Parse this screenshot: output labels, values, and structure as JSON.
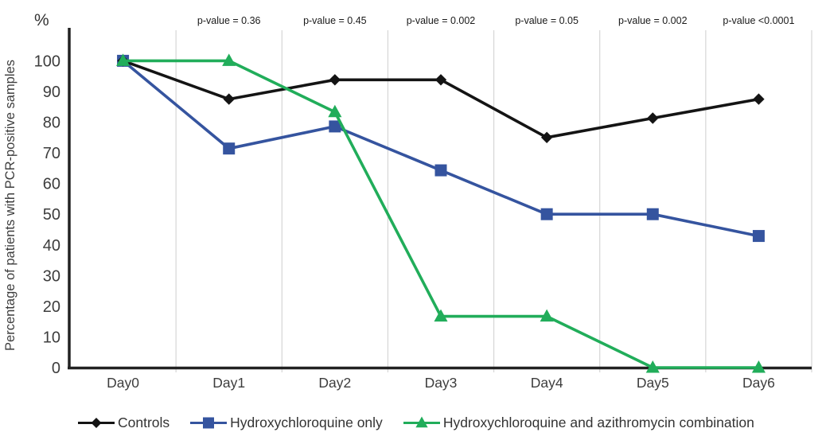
{
  "chart_data": {
    "type": "line",
    "title": "",
    "xlabel": "",
    "ylabel": "Percentage of patients with PCR-positive samples",
    "y_unit": "%",
    "categories": [
      "Day0",
      "Day1",
      "Day2",
      "Day3",
      "Day4",
      "Day5",
      "Day6"
    ],
    "y_ticks": [
      0,
      10,
      20,
      30,
      40,
      50,
      60,
      70,
      80,
      90,
      100
    ],
    "ylim": [
      0,
      100
    ],
    "grid": "vertical gridlines at category boundaries",
    "legend_position": "bottom",
    "p_value_annotations": [
      {
        "category": "Day1",
        "label": "p-value = 0.36"
      },
      {
        "category": "Day2",
        "label": "p-value = 0.45"
      },
      {
        "category": "Day3",
        "label": "p-value = 0.002"
      },
      {
        "category": "Day4",
        "label": "p-value = 0.05"
      },
      {
        "category": "Day5",
        "label": "p-value = 0.002"
      },
      {
        "category": "Day6",
        "label": "p-value <0.0001"
      }
    ],
    "series": [
      {
        "name": "Controls",
        "marker": "diamond",
        "color": "#141414",
        "values": [
          100,
          87.5,
          93.8,
          93.8,
          75,
          81.3,
          87.5
        ]
      },
      {
        "name": "Hydroxychloroquine only",
        "marker": "square",
        "color": "#35549f",
        "values": [
          100,
          71.4,
          78.6,
          64.3,
          50,
          50,
          42.9
        ]
      },
      {
        "name": "Hydroxychloroquine and azithromycin combination",
        "marker": "triangle",
        "color": "#21ad5a",
        "values": [
          100,
          100,
          83.3,
          16.7,
          16.7,
          0,
          0
        ]
      }
    ],
    "colors": {
      "gridline": "#d6d6d6",
      "axis": "#222222",
      "tick_text": "#3d3d3d",
      "annotation_text": "#1a1a1a"
    }
  }
}
